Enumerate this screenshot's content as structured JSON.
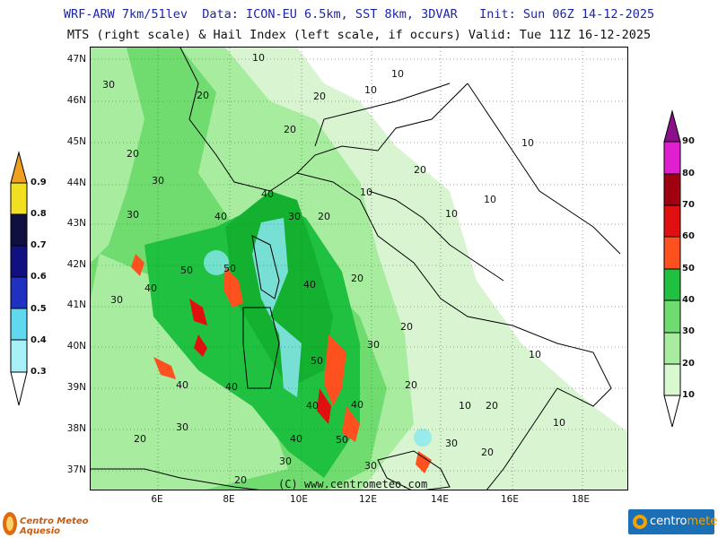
{
  "header": {
    "line1": "WRF-ARW 7km/51lev  Data: ICON-EU 6.5km, SST 8km, 3DVAR   Init: Sun 06Z 14-12-2025",
    "line2": "MTS (right scale) & Hail Index (left scale, if occurs) Valid: Tue 11Z 16-12-2025"
  },
  "axes": {
    "lat_labels": [
      "47N",
      "46N",
      "45N",
      "44N",
      "43N",
      "42N",
      "41N",
      "40N",
      "39N",
      "38N",
      "37N"
    ],
    "lon_labels": [
      "6E",
      "8E",
      "10E",
      "12E",
      "14E",
      "16E",
      "18E"
    ]
  },
  "hail_scale": {
    "labels": [
      "0.9",
      "0.8",
      "0.7",
      "0.6",
      "0.5",
      "0.4",
      "0.3"
    ],
    "colors": [
      "#f0a020",
      "#f0e020",
      "#101040",
      "#101080",
      "#2030c0",
      "#60d8f0",
      "#a8f0f8"
    ]
  },
  "mts_scale": {
    "labels": [
      "90",
      "80",
      "70",
      "60",
      "50",
      "40",
      "30",
      "20",
      "10"
    ],
    "colors": [
      "#b010b0",
      "#e020d0",
      "#a00010",
      "#e01010",
      "#ff5020",
      "#20c040",
      "#70dc70",
      "#a8eca0",
      "#d8f8d0"
    ]
  },
  "contour_labels": [
    "10",
    "20",
    "30",
    "40",
    "50"
  ],
  "copyright": "(C) www.centrometeo.com",
  "logo_left": "Centro Meteo Aquesio",
  "logo_right_a": "centro",
  "logo_right_b": "meteo"
}
